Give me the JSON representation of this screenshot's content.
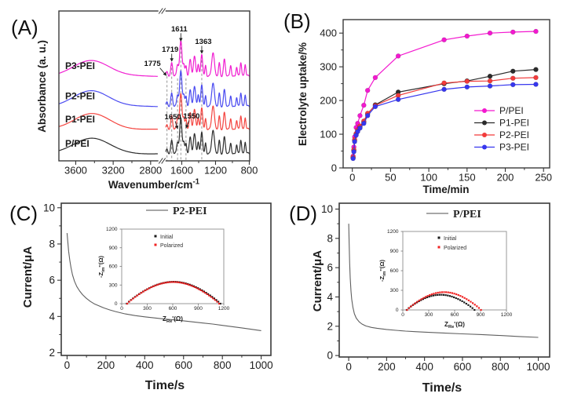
{
  "panels": [
    {
      "label": "(A)"
    },
    {
      "label": "(B)"
    },
    {
      "label": "(C)"
    },
    {
      "label": "(D)"
    }
  ],
  "chart_data": [
    {
      "panel": "A",
      "type": "line",
      "kind": "ftir-spectra",
      "xlabel": "Wavenumber/cm",
      "xlabel_sup": "-1",
      "ylabel": "Absorbance (a. u.)",
      "x_axis_break": true,
      "x_segments": [
        {
          "min": 2720,
          "max": 3780,
          "ticks": [
            3600,
            3200,
            2800
          ],
          "minor_ticks": [
            3400,
            3000
          ]
        },
        {
          "min": 795,
          "max": 1790,
          "ticks": [
            1600,
            1200,
            800
          ],
          "minor_ticks": [
            1400,
            1000
          ]
        }
      ],
      "ylim": [
        0,
        4
      ],
      "curves": [
        {
          "name": "P/PEI",
          "color": "#2e2e2e",
          "offset": 0.19
        },
        {
          "name": "P1-PEI",
          "color": "#f4443f",
          "offset": 0.84
        },
        {
          "name": "P2-PEI",
          "color": "#4a4af0",
          "offset": 1.45
        },
        {
          "name": "P3-PEI",
          "color": "#f01fd1",
          "offset": 2.26
        }
      ],
      "broad_band": {
        "center": 3430,
        "height": 0.42,
        "width": 190
      },
      "peaks": [
        [
          1775,
          0.11,
          10
        ],
        [
          1719,
          0.36,
          11
        ],
        [
          1650,
          0.29,
          10
        ],
        [
          1611,
          0.95,
          14
        ],
        [
          1576,
          0.31,
          9
        ],
        [
          1550,
          0.26,
          9
        ],
        [
          1500,
          0.44,
          12
        ],
        [
          1450,
          0.52,
          13
        ],
        [
          1405,
          0.31,
          9
        ],
        [
          1363,
          0.6,
          11
        ],
        [
          1318,
          0.28,
          8
        ],
        [
          1230,
          0.64,
          16
        ],
        [
          1155,
          0.34,
          9
        ],
        [
          1095,
          0.44,
          11
        ],
        [
          1020,
          0.31,
          9
        ],
        [
          950,
          0.24,
          8
        ],
        [
          900,
          0.38,
          9
        ],
        [
          848,
          0.31,
          8
        ]
      ],
      "peak_annotations": [
        {
          "text": "1775",
          "x": 1775,
          "label_v": 2.53,
          "tip_v": 2.28,
          "label_dx": -8,
          "anchor": "end",
          "arrow_dx0": -9,
          "arrow_dx1": -1
        },
        {
          "text": "1719",
          "x": 1719,
          "label_v": 2.91,
          "tip_v": 2.66,
          "label_dx": -2
        },
        {
          "text": "1611",
          "x": 1611,
          "label_v": 3.46,
          "tip_v": 3.2,
          "label_dx": -2
        },
        {
          "text": "1363",
          "x": 1363,
          "label_v": 3.12,
          "tip_v": 2.87,
          "label_dx": 2
        },
        {
          "text": "1650",
          "x": 1650,
          "label_v": 1.11,
          "tip_v": 0.86,
          "label_dx": -6,
          "arrow_dx0": -3
        },
        {
          "text": "1550",
          "x": 1550,
          "label_v": 1.13,
          "tip_v": 0.88,
          "label_dx": 7,
          "arrow_dx0": 4
        }
      ],
      "dashed_guides": [
        {
          "x": 1775,
          "from_v": 2.26
        },
        {
          "x": 1719,
          "from_v": 2.6
        },
        {
          "x": 1650,
          "from_v": 2.2
        },
        {
          "x": 1611,
          "from_v": 3.15
        },
        {
          "x": 1550,
          "from_v": 2.2
        },
        {
          "x": 1363,
          "from_v": 2.8
        }
      ]
    },
    {
      "panel": "B",
      "type": "scatter-line",
      "xlabel": "Time/min",
      "ylabel": "Electrolyte uptake/%",
      "xlim": [
        -12,
        258
      ],
      "ylim": [
        0,
        440
      ],
      "xticks": [
        0,
        50,
        100,
        150,
        200,
        250
      ],
      "yticks": [
        0,
        100,
        200,
        300,
        400
      ],
      "x_minor_step": 25,
      "y_minor_step": 50,
      "x": [
        1,
        2,
        3,
        5,
        7,
        10,
        15,
        20,
        30,
        60,
        120,
        150,
        180,
        210,
        240
      ],
      "series": [
        {
          "name": "P/PEI",
          "color": "#f318cf",
          "values": [
            35,
            62,
            92,
            120,
            132,
            155,
            186,
            230,
            268,
            332,
            380,
            391,
            400,
            403,
            405
          ]
        },
        {
          "name": "P1-PEI",
          "color": "#2b2b2b",
          "values": [
            30,
            52,
            82,
            100,
            112,
            122,
            136,
            160,
            187,
            225,
            250,
            258,
            272,
            287,
            292
          ]
        },
        {
          "name": "P2-PEI",
          "color": "#f23b3b",
          "values": [
            32,
            54,
            84,
            102,
            113,
            124,
            139,
            162,
            185,
            215,
            252,
            257,
            258,
            266,
            268
          ]
        },
        {
          "name": "P3-PEI",
          "color": "#3636ee",
          "values": [
            28,
            48,
            78,
            97,
            108,
            118,
            132,
            155,
            182,
            203,
            233,
            240,
            243,
            247,
            248
          ]
        }
      ],
      "legend_position": "right-middle"
    },
    {
      "panel": "C",
      "type": "line",
      "xlabel": "Time/s",
      "ylabel": "Current/μA",
      "xlim": [
        -30,
        1050
      ],
      "ylim": [
        1.85,
        10.25
      ],
      "xticks": [
        0,
        200,
        400,
        600,
        800,
        1000
      ],
      "yticks": [
        2,
        4,
        6,
        8,
        10
      ],
      "x_minor_step": 100,
      "y_minor_step": 1,
      "legend_label": "P2-PEI",
      "line_color": "#5f5f5f",
      "points": [
        [
          0,
          8.6
        ],
        [
          4,
          8.1
        ],
        [
          8,
          7.6
        ],
        [
          14,
          7.1
        ],
        [
          20,
          6.7
        ],
        [
          28,
          6.3
        ],
        [
          38,
          5.95
        ],
        [
          50,
          5.65
        ],
        [
          65,
          5.4
        ],
        [
          80,
          5.2
        ],
        [
          100,
          5.0
        ],
        [
          120,
          4.83
        ],
        [
          140,
          4.7
        ],
        [
          165,
          4.58
        ],
        [
          190,
          4.47
        ],
        [
          220,
          4.36
        ],
        [
          250,
          4.27
        ],
        [
          300,
          4.14
        ],
        [
          350,
          4.05
        ],
        [
          400,
          3.98
        ],
        [
          450,
          3.92
        ],
        [
          500,
          3.86
        ],
        [
          550,
          3.81
        ],
        [
          600,
          3.76
        ],
        [
          650,
          3.7
        ],
        [
          700,
          3.64
        ],
        [
          750,
          3.58
        ],
        [
          800,
          3.51
        ],
        [
          850,
          3.44
        ],
        [
          900,
          3.37
        ],
        [
          950,
          3.29
        ],
        [
          1000,
          3.22
        ]
      ],
      "inset": {
        "xlabel_parts": [
          [
            "Z",
            ""
          ],
          [
            "Re",
            "sub"
          ],
          [
            "'(Ω)",
            ""
          ]
        ],
        "ylabel_parts": [
          [
            "-Z",
            ""
          ],
          [
            "im",
            "sub"
          ],
          [
            "''(Ω)",
            ""
          ]
        ],
        "xlim": [
          0,
          1200
        ],
        "ylim": [
          0,
          1200
        ],
        "xticks": [
          0,
          300,
          600,
          900,
          1200
        ],
        "yticks": [
          0,
          300,
          600,
          900,
          1200
        ],
        "series": [
          {
            "name": "Initial",
            "color": "#1a1a1a",
            "start": 60,
            "end": 1160,
            "peak": 352
          },
          {
            "name": "Polarized",
            "color": "#f02222",
            "start": 65,
            "end": 1145,
            "peak": 348
          }
        ]
      }
    },
    {
      "panel": "D",
      "type": "line",
      "xlabel": "Time/s",
      "ylabel": "Current/μA",
      "xlim": [
        -50,
        1060
      ],
      "ylim": [
        -0.1,
        10.4
      ],
      "xticks": [
        0,
        200,
        400,
        600,
        800,
        1000
      ],
      "yticks": [
        0,
        2,
        4,
        6,
        8,
        10
      ],
      "x_minor_step": 100,
      "y_minor_step": 1,
      "legend_label": "P/PEI",
      "line_color": "#5f5f5f",
      "points": [
        [
          0,
          9.0
        ],
        [
          2,
          7.8
        ],
        [
          5,
          6.3
        ],
        [
          8,
          5.3
        ],
        [
          12,
          4.4
        ],
        [
          16,
          3.85
        ],
        [
          22,
          3.3
        ],
        [
          30,
          2.85
        ],
        [
          40,
          2.55
        ],
        [
          55,
          2.3
        ],
        [
          70,
          2.15
        ],
        [
          90,
          2.02
        ],
        [
          120,
          1.92
        ],
        [
          150,
          1.86
        ],
        [
          200,
          1.78
        ],
        [
          250,
          1.72
        ],
        [
          300,
          1.67
        ],
        [
          350,
          1.63
        ],
        [
          400,
          1.6
        ],
        [
          500,
          1.54
        ],
        [
          600,
          1.48
        ],
        [
          700,
          1.43
        ],
        [
          800,
          1.37
        ],
        [
          900,
          1.3
        ],
        [
          1000,
          1.24
        ]
      ],
      "inset": {
        "xlabel_parts": [
          [
            "Z",
            ""
          ],
          [
            "Re",
            "sub"
          ],
          [
            "'(Ω)",
            ""
          ]
        ],
        "ylabel_parts": [
          [
            "-Z",
            ""
          ],
          [
            "im",
            "sub"
          ],
          [
            "''(Ω)",
            ""
          ]
        ],
        "xlim": [
          0,
          1200
        ],
        "ylim": [
          0,
          1200
        ],
        "xticks": [
          0,
          300,
          600,
          900,
          1200
        ],
        "yticks": [
          0,
          300,
          600,
          900,
          1200
        ],
        "series": [
          {
            "name": "Initial",
            "color": "#1a1a1a",
            "start": 45,
            "end": 830,
            "peak": 232
          },
          {
            "name": "Polarized",
            "color": "#f02222",
            "start": 50,
            "end": 905,
            "peak": 272
          }
        ]
      }
    }
  ]
}
